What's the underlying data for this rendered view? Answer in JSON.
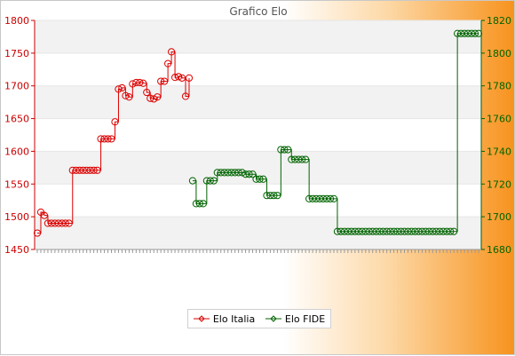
{
  "chart_data": {
    "type": "line",
    "title": "Grafico Elo",
    "y_left": {
      "ticks": [
        1450,
        1500,
        1550,
        1600,
        1650,
        1700,
        1750,
        1800
      ],
      "range": [
        1450,
        1800
      ]
    },
    "y_right": {
      "ticks": [
        1680,
        1700,
        1720,
        1740,
        1760,
        1780,
        1800,
        1820
      ],
      "range": [
        1680,
        1820
      ]
    },
    "x_tick_count": 126,
    "series": [
      {
        "name": "Elo Italia",
        "axis": "left",
        "color": "#dd0000",
        "x_index": [
          0,
          1,
          2,
          3,
          4,
          5,
          6,
          7,
          8,
          9,
          10,
          11,
          12,
          13,
          14,
          15,
          16,
          17,
          18,
          19,
          20,
          21,
          22,
          23,
          24,
          25,
          26,
          27,
          28,
          29,
          30,
          31,
          32,
          33,
          34,
          35,
          36,
          37,
          38,
          39,
          40,
          41,
          42,
          43
        ],
        "values": [
          1475,
          1507,
          1502,
          1490,
          1490,
          1490,
          1490,
          1490,
          1490,
          1490,
          1571,
          1571,
          1571,
          1571,
          1571,
          1571,
          1571,
          1571,
          1619,
          1619,
          1619,
          1619,
          1645,
          1695,
          1697,
          1685,
          1683,
          1703,
          1705,
          1705,
          1704,
          1690,
          1681,
          1680,
          1683,
          1707,
          1707,
          1734,
          1752,
          1713,
          1714,
          1712,
          1684,
          1712
        ]
      },
      {
        "name": "Elo FIDE",
        "axis": "right",
        "color": "#006400",
        "x_index": [
          44,
          45,
          46,
          47,
          48,
          49,
          50,
          51,
          52,
          53,
          54,
          55,
          56,
          57,
          58,
          59,
          60,
          61,
          62,
          63,
          64,
          65,
          66,
          67,
          68,
          69,
          70,
          71,
          72,
          73,
          74,
          75,
          76,
          77,
          78,
          79,
          80,
          81,
          82,
          83,
          84,
          85,
          86,
          87,
          88,
          89,
          90,
          91,
          92,
          93,
          94,
          95,
          96,
          97,
          98,
          99,
          100,
          101,
          102,
          103,
          104,
          105,
          106,
          107,
          108,
          109,
          110,
          111,
          112,
          113,
          114,
          115,
          116,
          117,
          118,
          119,
          120,
          121,
          122,
          123,
          124,
          125
        ],
        "values": [
          1722,
          1708,
          1708,
          1708,
          1722,
          1722,
          1722,
          1727,
          1727,
          1727,
          1727,
          1727,
          1727,
          1727,
          1727,
          1726,
          1726,
          1726,
          1723,
          1723,
          1723,
          1713,
          1713,
          1713,
          1713,
          1741,
          1741,
          1741,
          1735,
          1735,
          1735,
          1735,
          1735,
          1711,
          1711,
          1711,
          1711,
          1711,
          1711,
          1711,
          1711,
          1691,
          1691,
          1691,
          1691,
          1691,
          1691,
          1691,
          1691,
          1691,
          1691,
          1691,
          1691,
          1691,
          1691,
          1691,
          1691,
          1691,
          1691,
          1691,
          1691,
          1691,
          1691,
          1691,
          1691,
          1691,
          1691,
          1691,
          1691,
          1691,
          1691,
          1691,
          1691,
          1691,
          1691,
          1812,
          1812,
          1812,
          1812,
          1812,
          1812,
          1812
        ]
      }
    ],
    "legend": {
      "placement": "bottom-center"
    },
    "grid": true,
    "background_bands": [
      "#f2f2f2",
      "#ffffff"
    ]
  }
}
